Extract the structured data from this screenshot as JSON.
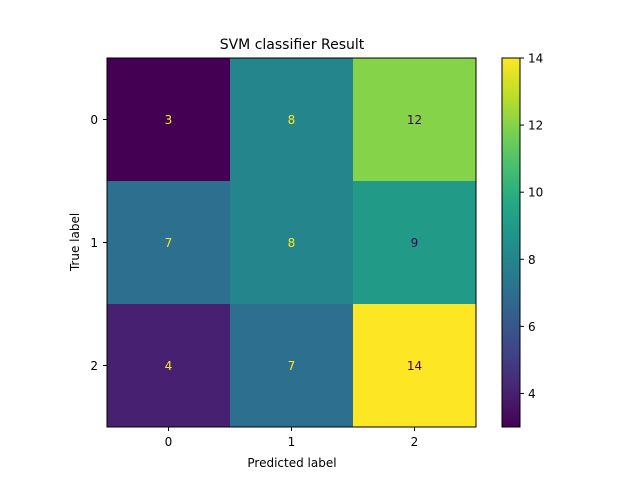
{
  "chart_data": {
    "type": "heatmap",
    "title": "SVM classifier Result",
    "xlabel": "Predicted label",
    "ylabel": "True label",
    "x_categories": [
      "0",
      "1",
      "2"
    ],
    "y_categories": [
      "0",
      "1",
      "2"
    ],
    "values": [
      [
        3,
        8,
        12
      ],
      [
        7,
        8,
        9
      ],
      [
        4,
        7,
        14
      ]
    ],
    "colorbar": {
      "range": [
        3,
        14
      ],
      "ticks": [
        4,
        6,
        8,
        10,
        12,
        14
      ],
      "colormap": "viridis"
    },
    "text_colors": {
      "on_dark": "#fde725",
      "on_light": "#440154"
    }
  }
}
